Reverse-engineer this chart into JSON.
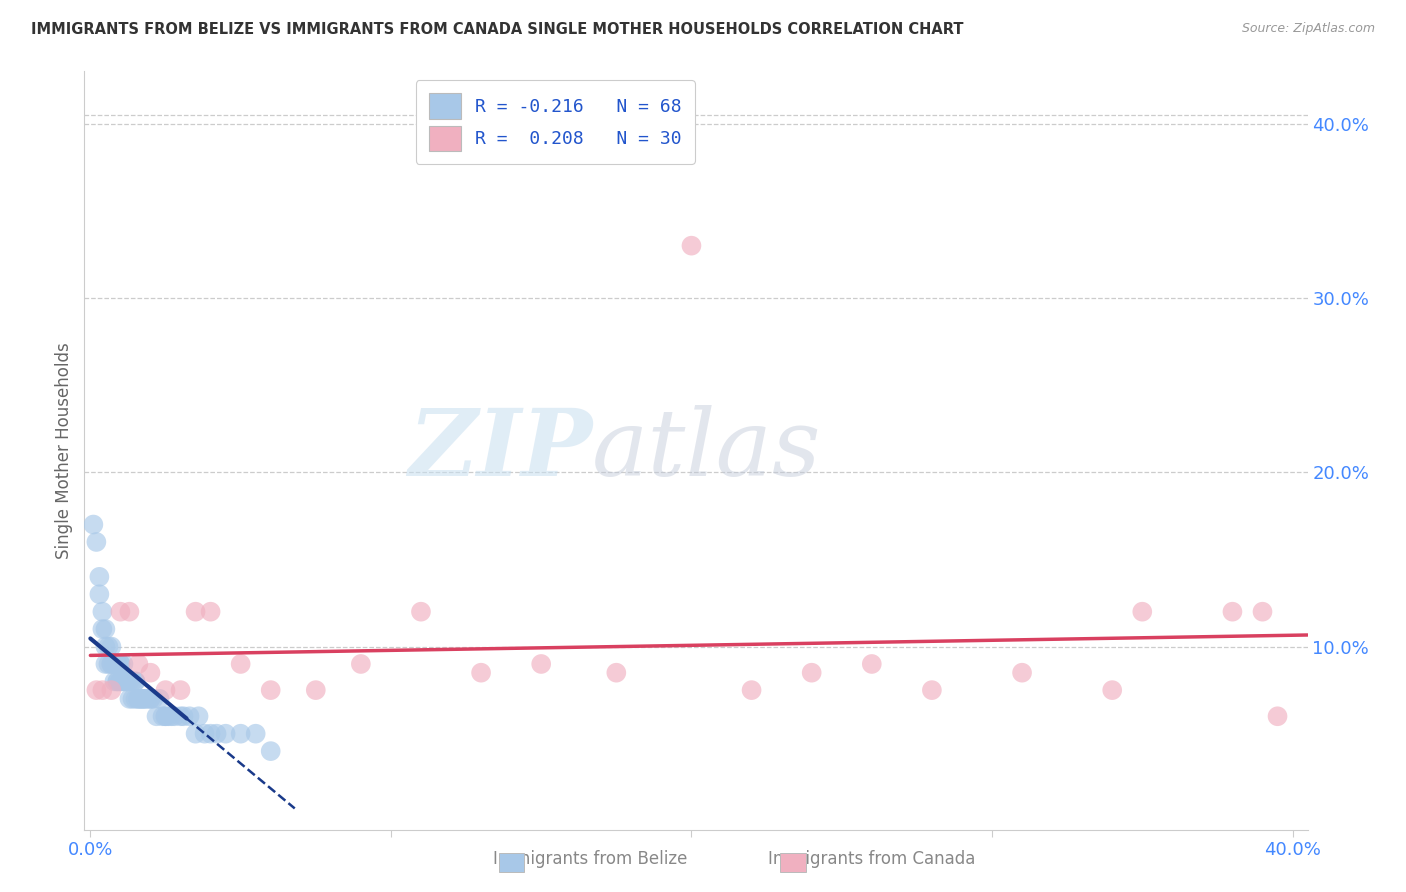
{
  "title": "IMMIGRANTS FROM BELIZE VS IMMIGRANTS FROM CANADA SINGLE MOTHER HOUSEHOLDS CORRELATION CHART",
  "source": "Source: ZipAtlas.com",
  "ylabel": "Single Mother Households",
  "xlabel_belize": "Immigrants from Belize",
  "xlabel_canada": "Immigrants from Canada",
  "xlim": [
    -0.002,
    0.405
  ],
  "ylim": [
    -0.005,
    0.43
  ],
  "yticks_right": [
    0.1,
    0.2,
    0.3,
    0.4
  ],
  "ytick_labels_right": [
    "10.0%",
    "20.0%",
    "30.0%",
    "40.0%"
  ],
  "xtick_left_label": "0.0%",
  "xtick_right_label": "40.0%",
  "legend_line1": "R = -0.216   N = 68",
  "legend_line2": "R =  0.208   N = 30",
  "color_belize": "#a8c8e8",
  "color_canada": "#f0b0c0",
  "color_belize_line": "#1a3a8a",
  "color_canada_line": "#d94060",
  "watermark_zip": "ZIP",
  "watermark_atlas": "atlas",
  "background_color": "#ffffff",
  "grid_color": "#cccccc",
  "title_color": "#333333",
  "source_color": "#999999",
  "tick_color": "#4488ff",
  "ylabel_color": "#666666",
  "belize_x": [
    0.002,
    0.003,
    0.003,
    0.004,
    0.004,
    0.005,
    0.005,
    0.005,
    0.006,
    0.006,
    0.007,
    0.007,
    0.007,
    0.008,
    0.008,
    0.008,
    0.009,
    0.009,
    0.009,
    0.009,
    0.01,
    0.01,
    0.01,
    0.01,
    0.011,
    0.011,
    0.011,
    0.012,
    0.012,
    0.012,
    0.013,
    0.013,
    0.014,
    0.014,
    0.015,
    0.015,
    0.015,
    0.016,
    0.016,
    0.017,
    0.017,
    0.018,
    0.018,
    0.019,
    0.02,
    0.02,
    0.021,
    0.022,
    0.023,
    0.024,
    0.025,
    0.025,
    0.026,
    0.027,
    0.028,
    0.03,
    0.031,
    0.033,
    0.035,
    0.036,
    0.038,
    0.04,
    0.042,
    0.045,
    0.05,
    0.055,
    0.06,
    0.001
  ],
  "belize_y": [
    0.16,
    0.14,
    0.13,
    0.12,
    0.11,
    0.11,
    0.1,
    0.09,
    0.1,
    0.09,
    0.1,
    0.09,
    0.09,
    0.09,
    0.09,
    0.08,
    0.09,
    0.09,
    0.08,
    0.08,
    0.09,
    0.09,
    0.08,
    0.08,
    0.09,
    0.08,
    0.08,
    0.08,
    0.08,
    0.08,
    0.08,
    0.07,
    0.08,
    0.07,
    0.08,
    0.08,
    0.07,
    0.07,
    0.07,
    0.07,
    0.07,
    0.07,
    0.07,
    0.07,
    0.07,
    0.07,
    0.07,
    0.06,
    0.07,
    0.06,
    0.06,
    0.06,
    0.06,
    0.06,
    0.06,
    0.06,
    0.06,
    0.06,
    0.05,
    0.06,
    0.05,
    0.05,
    0.05,
    0.05,
    0.05,
    0.05,
    0.04,
    0.17
  ],
  "canada_x": [
    0.002,
    0.004,
    0.007,
    0.01,
    0.013,
    0.016,
    0.02,
    0.025,
    0.03,
    0.035,
    0.04,
    0.05,
    0.06,
    0.075,
    0.09,
    0.11,
    0.13,
    0.15,
    0.175,
    0.2,
    0.22,
    0.24,
    0.26,
    0.28,
    0.31,
    0.34,
    0.35,
    0.38,
    0.39,
    0.395
  ],
  "canada_y": [
    0.075,
    0.075,
    0.075,
    0.12,
    0.12,
    0.09,
    0.085,
    0.075,
    0.075,
    0.12,
    0.12,
    0.09,
    0.075,
    0.075,
    0.09,
    0.12,
    0.085,
    0.09,
    0.085,
    0.33,
    0.075,
    0.085,
    0.09,
    0.075,
    0.085,
    0.075,
    0.12,
    0.12,
    0.12,
    0.06
  ],
  "belize_trend_x": [
    0.0,
    0.032
  ],
  "belize_trend_solid_end": 0.032,
  "belize_trend_dashed_end": 0.068,
  "canada_trend_x": [
    0.0,
    0.405
  ]
}
